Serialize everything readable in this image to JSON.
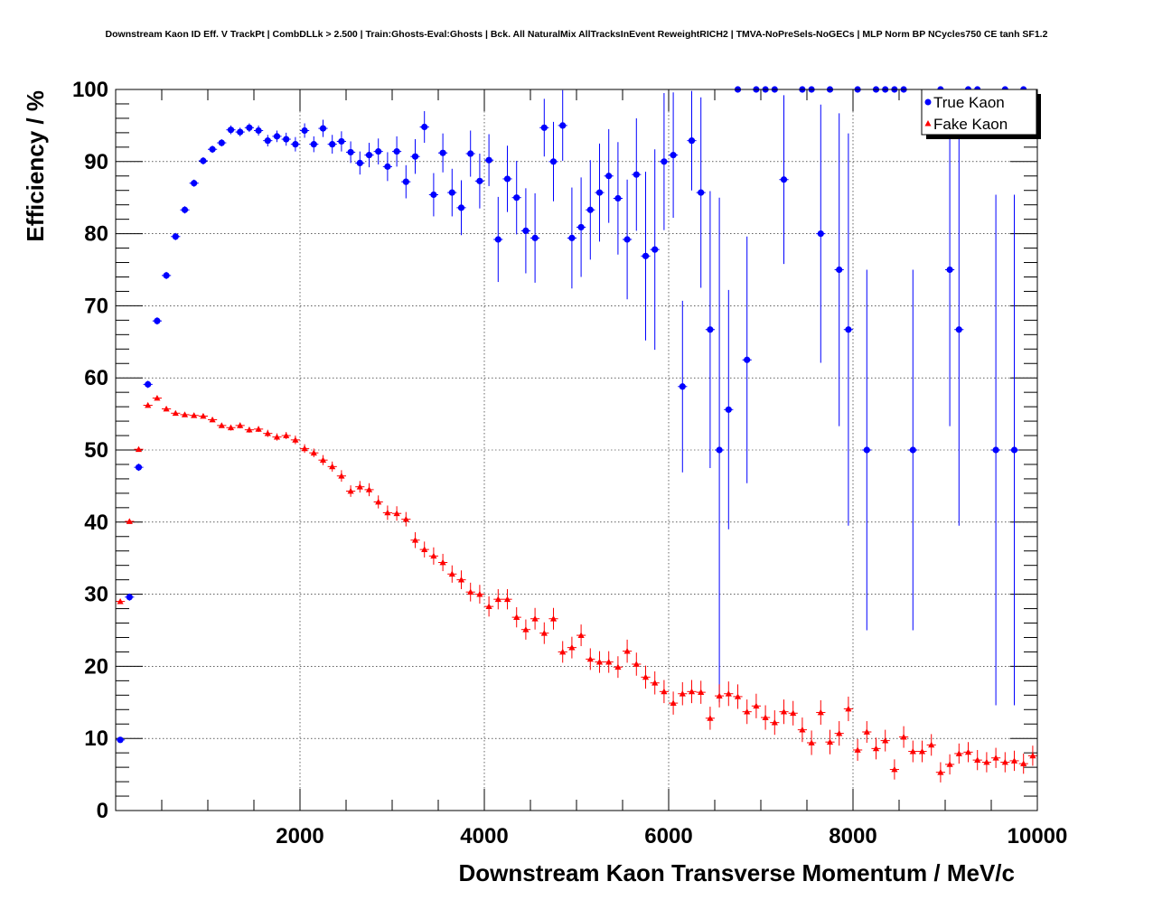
{
  "chart_data": {
    "type": "scatter",
    "title": "Downstream Kaon ID Eff. V TrackPt | CombDLLk > 2.500 | Train:Ghosts-Eval:Ghosts | Bck. All NaturalMix AllTracksInEvent ReweightRICH2 | TMVA-NoPreSels-NoGECs | MLP Norm BP NCycles750 CE tanh SF1.2",
    "xlabel": "Downstream Kaon Transverse Momentum / MeV/c",
    "ylabel": "Efficiency / %",
    "xlim": [
      0,
      10000
    ],
    "ylim": [
      0,
      100
    ],
    "x_ticks": [
      "2000",
      "4000",
      "6000",
      "8000",
      "10000"
    ],
    "y_ticks": [
      "0",
      "10",
      "20",
      "30",
      "40",
      "50",
      "60",
      "70",
      "80",
      "90",
      "100"
    ],
    "grid": true,
    "legend_position": "top-right",
    "series": [
      {
        "name": "True Kaon",
        "color": "#0000ff",
        "marker": "circle",
        "points": [
          [
            50,
            9.8,
            0.4
          ],
          [
            150,
            29.6,
            0.5
          ],
          [
            250,
            47.6,
            0.5
          ],
          [
            350,
            59.1,
            0.5
          ],
          [
            450,
            67.9,
            0.5
          ],
          [
            550,
            74.2,
            0.5
          ],
          [
            650,
            79.6,
            0.5
          ],
          [
            750,
            83.3,
            0.5
          ],
          [
            850,
            87.0,
            0.5
          ],
          [
            950,
            90.1,
            0.5
          ],
          [
            1050,
            91.7,
            0.5
          ],
          [
            1150,
            92.6,
            0.5
          ],
          [
            1250,
            94.4,
            0.6
          ],
          [
            1350,
            94.1,
            0.6
          ],
          [
            1450,
            94.7,
            0.6
          ],
          [
            1550,
            94.3,
            0.7
          ],
          [
            1650,
            92.9,
            0.8
          ],
          [
            1750,
            93.5,
            0.8
          ],
          [
            1850,
            93.1,
            0.9
          ],
          [
            1950,
            92.4,
            1.0
          ],
          [
            2050,
            94.3,
            1.0
          ],
          [
            2150,
            92.4,
            1.1
          ],
          [
            2250,
            94.6,
            1.2
          ],
          [
            2350,
            92.4,
            1.3
          ],
          [
            2450,
            92.8,
            1.4
          ],
          [
            2550,
            91.3,
            1.5
          ],
          [
            2650,
            89.8,
            1.6
          ],
          [
            2750,
            90.9,
            1.7
          ],
          [
            2850,
            91.4,
            1.8
          ],
          [
            2950,
            89.3,
            2.0
          ],
          [
            3050,
            91.4,
            2.1
          ],
          [
            3150,
            87.2,
            2.3
          ],
          [
            3250,
            90.7,
            2.4
          ],
          [
            3350,
            94.8,
            2.2
          ],
          [
            3450,
            85.4,
            3.0
          ],
          [
            3550,
            91.2,
            2.7
          ],
          [
            3650,
            85.7,
            3.3
          ],
          [
            3750,
            83.6,
            3.8
          ],
          [
            3850,
            91.1,
            3.2
          ],
          [
            3950,
            87.3,
            3.8
          ],
          [
            4050,
            90.2,
            3.6
          ],
          [
            4150,
            79.2,
            5.9
          ],
          [
            4250,
            87.6,
            4.6
          ],
          [
            4350,
            85.0,
            5.1
          ],
          [
            4450,
            80.4,
            5.9
          ],
          [
            4550,
            79.4,
            6.2
          ],
          [
            4650,
            94.7,
            4.0
          ],
          [
            4750,
            90.0,
            5.5
          ],
          [
            4850,
            95.0,
            4.9
          ],
          [
            4950,
            79.4,
            7.0
          ],
          [
            5050,
            80.9,
            6.9
          ],
          [
            5150,
            83.3,
            6.9
          ],
          [
            5250,
            85.7,
            6.8
          ],
          [
            5350,
            88.0,
            6.5
          ],
          [
            5450,
            84.9,
            7.8
          ],
          [
            5550,
            79.2,
            8.3
          ],
          [
            5650,
            88.2,
            7.8
          ],
          [
            5750,
            76.9,
            11.7
          ],
          [
            5850,
            77.8,
            13.9
          ],
          [
            5950,
            90.0,
            9.5
          ],
          [
            6050,
            90.9,
            8.7
          ],
          [
            6150,
            58.8,
            11.9
          ],
          [
            6250,
            92.9,
            6.9
          ],
          [
            6350,
            85.7,
            13.2
          ],
          [
            6450,
            66.7,
            19.2
          ],
          [
            6550,
            50.0,
            35.0
          ],
          [
            6650,
            55.6,
            16.6
          ],
          [
            6750,
            100,
            0
          ],
          [
            6850,
            62.5,
            17.1
          ],
          [
            6950,
            100,
            0
          ],
          [
            7050,
            100,
            0
          ],
          [
            7150,
            100,
            0
          ],
          [
            7250,
            87.5,
            11.7
          ],
          [
            7450,
            100,
            0
          ],
          [
            7550,
            100,
            0
          ],
          [
            7650,
            80.0,
            17.9
          ],
          [
            7750,
            100,
            0
          ],
          [
            7850,
            75.0,
            21.7
          ],
          [
            7950,
            66.7,
            27.2
          ],
          [
            8050,
            100,
            0
          ],
          [
            8150,
            50.0,
            25.0
          ],
          [
            8250,
            100,
            0
          ],
          [
            8350,
            100,
            0
          ],
          [
            8450,
            100,
            0
          ],
          [
            8550,
            100,
            0
          ],
          [
            8650,
            50.0,
            25.0
          ],
          [
            8950,
            100,
            0
          ],
          [
            9050,
            75.0,
            21.7
          ],
          [
            9150,
            66.7,
            27.2
          ],
          [
            9250,
            100,
            0
          ],
          [
            9350,
            100,
            0
          ],
          [
            9550,
            50.0,
            35.4
          ],
          [
            9650,
            100,
            0
          ],
          [
            9750,
            50.0,
            35.4
          ],
          [
            9850,
            100,
            0
          ]
        ]
      },
      {
        "name": "Fake Kaon",
        "color": "#ff0000",
        "marker": "triangle",
        "points": [
          [
            50,
            29.0,
            0.3
          ],
          [
            150,
            40.1,
            0.3
          ],
          [
            250,
            50.1,
            0.3
          ],
          [
            350,
            56.2,
            0.3
          ],
          [
            450,
            57.2,
            0.3
          ],
          [
            550,
            55.7,
            0.3
          ],
          [
            650,
            55.1,
            0.3
          ],
          [
            750,
            54.9,
            0.3
          ],
          [
            850,
            54.8,
            0.3
          ],
          [
            950,
            54.7,
            0.3
          ],
          [
            1050,
            54.2,
            0.3
          ],
          [
            1150,
            53.4,
            0.3
          ],
          [
            1250,
            53.1,
            0.4
          ],
          [
            1350,
            53.4,
            0.4
          ],
          [
            1450,
            52.8,
            0.4
          ],
          [
            1550,
            52.9,
            0.4
          ],
          [
            1650,
            52.3,
            0.5
          ],
          [
            1750,
            51.8,
            0.5
          ],
          [
            1850,
            52.0,
            0.5
          ],
          [
            1950,
            51.4,
            0.6
          ],
          [
            2050,
            50.2,
            0.6
          ],
          [
            2150,
            49.6,
            0.6
          ],
          [
            2250,
            48.6,
            0.7
          ],
          [
            2350,
            47.7,
            0.7
          ],
          [
            2450,
            46.4,
            0.8
          ],
          [
            2550,
            44.3,
            0.8
          ],
          [
            2650,
            44.9,
            0.8
          ],
          [
            2750,
            44.5,
            0.9
          ],
          [
            2850,
            42.8,
            0.9
          ],
          [
            2950,
            41.3,
            1.0
          ],
          [
            3050,
            41.2,
            1.0
          ],
          [
            3150,
            40.4,
            1.0
          ],
          [
            3250,
            37.5,
            1.1
          ],
          [
            3350,
            36.2,
            1.1
          ],
          [
            3450,
            35.3,
            1.2
          ],
          [
            3550,
            34.4,
            1.2
          ],
          [
            3650,
            32.8,
            1.2
          ],
          [
            3750,
            32.0,
            1.3
          ],
          [
            3850,
            30.3,
            1.3
          ],
          [
            3950,
            30.0,
            1.3
          ],
          [
            4050,
            28.3,
            1.4
          ],
          [
            4150,
            29.3,
            1.4
          ],
          [
            4250,
            29.3,
            1.4
          ],
          [
            4350,
            26.8,
            1.4
          ],
          [
            4450,
            25.1,
            1.4
          ],
          [
            4550,
            26.6,
            1.5
          ],
          [
            4650,
            24.6,
            1.5
          ],
          [
            4750,
            26.6,
            1.5
          ],
          [
            4850,
            22.0,
            1.5
          ],
          [
            4950,
            22.6,
            1.5
          ],
          [
            5050,
            24.3,
            1.5
          ],
          [
            5150,
            21.0,
            1.5
          ],
          [
            5250,
            20.6,
            1.5
          ],
          [
            5350,
            20.6,
            1.5
          ],
          [
            5450,
            19.9,
            1.5
          ],
          [
            5550,
            22.1,
            1.6
          ],
          [
            5650,
            20.3,
            1.6
          ],
          [
            5750,
            18.5,
            1.6
          ],
          [
            5850,
            17.7,
            1.6
          ],
          [
            5950,
            16.5,
            1.6
          ],
          [
            6050,
            14.9,
            1.6
          ],
          [
            6150,
            16.2,
            1.6
          ],
          [
            6250,
            16.5,
            1.6
          ],
          [
            6350,
            16.4,
            1.6
          ],
          [
            6450,
            12.8,
            1.6
          ],
          [
            6550,
            15.9,
            1.6
          ],
          [
            6650,
            16.2,
            1.7
          ],
          [
            6750,
            15.8,
            1.7
          ],
          [
            6850,
            13.7,
            1.7
          ],
          [
            6950,
            14.5,
            1.7
          ],
          [
            7050,
            12.9,
            1.7
          ],
          [
            7150,
            12.2,
            1.7
          ],
          [
            7250,
            13.7,
            1.7
          ],
          [
            7350,
            13.5,
            1.7
          ],
          [
            7450,
            11.2,
            1.7
          ],
          [
            7550,
            9.4,
            1.7
          ],
          [
            7650,
            13.6,
            1.7
          ],
          [
            7750,
            9.5,
            1.7
          ],
          [
            7850,
            10.7,
            1.7
          ],
          [
            7950,
            14.1,
            1.7
          ],
          [
            8050,
            8.4,
            1.5
          ],
          [
            8150,
            10.9,
            1.5
          ],
          [
            8250,
            8.6,
            1.5
          ],
          [
            8350,
            9.7,
            1.5
          ],
          [
            8450,
            5.7,
            1.4
          ],
          [
            8550,
            10.2,
            1.5
          ],
          [
            8650,
            8.2,
            1.5
          ],
          [
            8750,
            8.2,
            1.5
          ],
          [
            8850,
            9.1,
            1.5
          ],
          [
            8950,
            5.3,
            1.4
          ],
          [
            9050,
            6.4,
            1.4
          ],
          [
            9150,
            7.9,
            1.4
          ],
          [
            9250,
            8.1,
            1.4
          ],
          [
            9350,
            7.0,
            1.4
          ],
          [
            9450,
            6.7,
            1.4
          ],
          [
            9550,
            7.3,
            1.4
          ],
          [
            9650,
            6.7,
            1.4
          ],
          [
            9750,
            6.9,
            1.4
          ],
          [
            9850,
            6.5,
            1.4
          ],
          [
            9950,
            7.6,
            1.4
          ]
        ]
      }
    ]
  }
}
